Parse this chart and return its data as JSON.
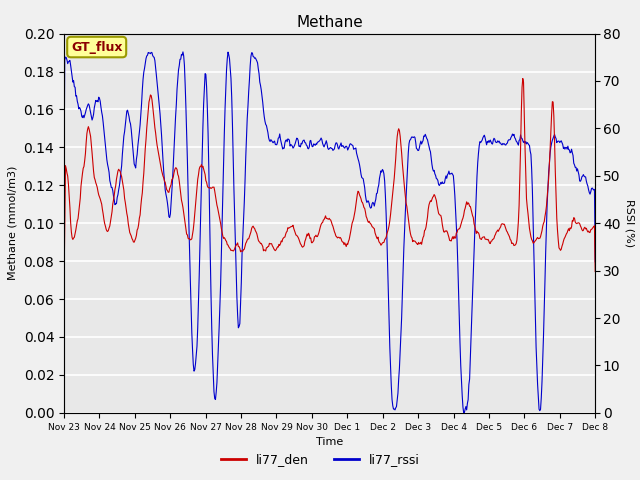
{
  "title": "Methane",
  "ylabel_left": "Methane (mmol/m3)",
  "ylabel_right": "RSSI (%)",
  "xlabel": "Time",
  "ylim_left": [
    0.0,
    0.2
  ],
  "ylim_right": [
    0,
    80
  ],
  "yticks_left": [
    0.0,
    0.02,
    0.04,
    0.06,
    0.08,
    0.1,
    0.12,
    0.14,
    0.16,
    0.18,
    0.2
  ],
  "yticks_right": [
    0,
    10,
    20,
    30,
    40,
    50,
    60,
    70,
    80
  ],
  "xtick_labels": [
    "Nov 23",
    "Nov 24",
    "Nov 25",
    "Nov 26",
    "Nov 27",
    "Nov 28",
    "Nov 29",
    "Nov 30",
    "Dec 1",
    "Dec 2",
    "Dec 3",
    "Dec 4",
    "Dec 5",
    "Dec 6",
    "Dec 7",
    "Dec 8"
  ],
  "color_den": "#cc0000",
  "color_rssi": "#0000cc",
  "legend_labels": [
    "li77_den",
    "li77_rssi"
  ],
  "annotation_text": "GT_flux",
  "bg_color": "#e8e8e8",
  "fig_bg_color": "#f0f0f0",
  "grid_color": "#ffffff",
  "linewidth": 0.8
}
